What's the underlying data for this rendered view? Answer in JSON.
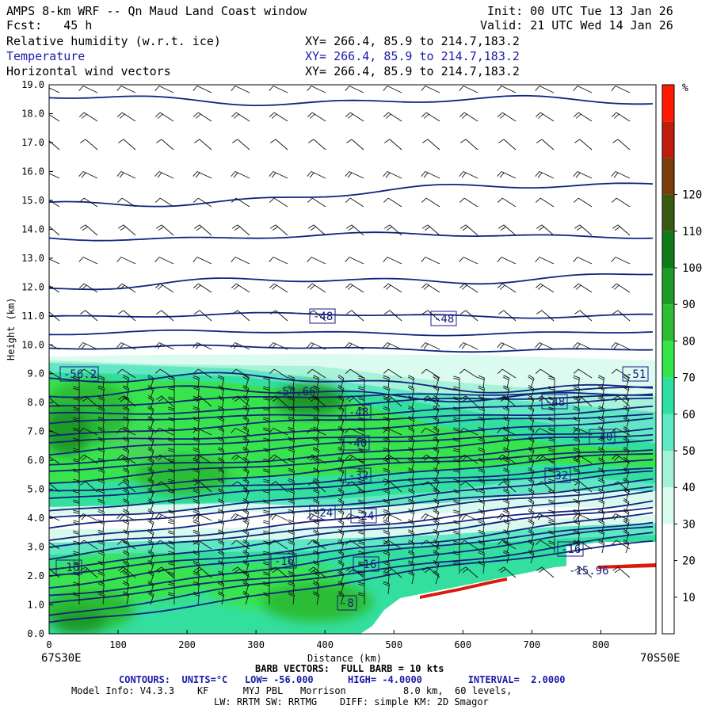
{
  "header": {
    "title": "AMPS 8-km WRF -- Qn Maud Land Coast window",
    "fcst": "Fcst:   45 h",
    "init": "Init: 00 UTC Tue 13 Jan 26",
    "valid": "Valid: 21 UTC Wed 14 Jan 26",
    "fields": [
      {
        "label": "Relative humidity (w.r.t. ice)",
        "xy": "XY= 266.4, 85.9 to 214.7,183.2"
      },
      {
        "label": "Temperature",
        "xy": "XY= 266.4, 85.9 to 214.7,183.2"
      },
      {
        "label": "Horizontal wind vectors",
        "xy": "XY= 266.4, 85.9 to 214.7,183.2"
      }
    ]
  },
  "chart_data": {
    "type": "heatmap",
    "title": "AMPS 8-km WRF -- Qn Maud Land Coast window",
    "xlabel": "Distance (km)",
    "ylabel": "Height (km)",
    "xlim": [
      0,
      880
    ],
    "ylim": [
      0,
      19
    ],
    "xticks": [
      0,
      100,
      200,
      300,
      400,
      500,
      600,
      700,
      800
    ],
    "yticks": [
      "0.0",
      "1.0",
      "2.0",
      "3.0",
      "4.0",
      "5.0",
      "6.0",
      "7.0",
      "8.0",
      "9.0",
      "10.0",
      "11.0",
      "12.0",
      "13.0",
      "14.0",
      "15.0",
      "16.0",
      "17.0",
      "18.0",
      "19.0"
    ],
    "x_endpoints": {
      "left": "67S30E",
      "right": "70S50E"
    },
    "colorbar": {
      "unit": "%",
      "ticks": [
        "10",
        "20",
        "30",
        "40",
        "50",
        "60",
        "70",
        "80",
        "90",
        "100",
        "110",
        "120"
      ],
      "colors": [
        "#ffffff",
        "#ffffff",
        "#ffffff",
        "#d9fbeb",
        "#a4f2d6",
        "#5fe8c4",
        "#2ddfa0",
        "#32e64a",
        "#2dbd34",
        "#1e9a26",
        "#107a18",
        "#395a12",
        "#7a3c0c",
        "#c01b0b",
        "#ff1a00"
      ]
    },
    "temperature_labels": [
      "-56.2",
      "-54.66",
      "-51",
      "-48",
      "-48",
      "-48",
      "-48",
      "-40",
      "-40",
      "-32",
      "-32",
      "-24",
      "-24",
      "-16",
      "-16",
      "-16",
      "-16",
      "-15.96",
      "-8"
    ],
    "wind_barb_scale": "FULL BARB = 10 kts",
    "contours": {
      "units": "°C",
      "low": -56.0,
      "high": -4.0,
      "interval": 2.0
    }
  },
  "footer": {
    "barb": "BARB VECTORS:  FULL BARB = 10 kts",
    "contours_line": "CONTOURS:  UNITS=°C   LOW= -56.000      HIGH= -4.0000        INTERVAL=  2.0000",
    "model1": "Model Info: V4.3.3    KF      MYJ PBL   Morrison          8.0 km,  60 levels,",
    "model2": "LW: RRTM SW: RRTMG    DIFF: simple KM: 2D Smagor"
  }
}
